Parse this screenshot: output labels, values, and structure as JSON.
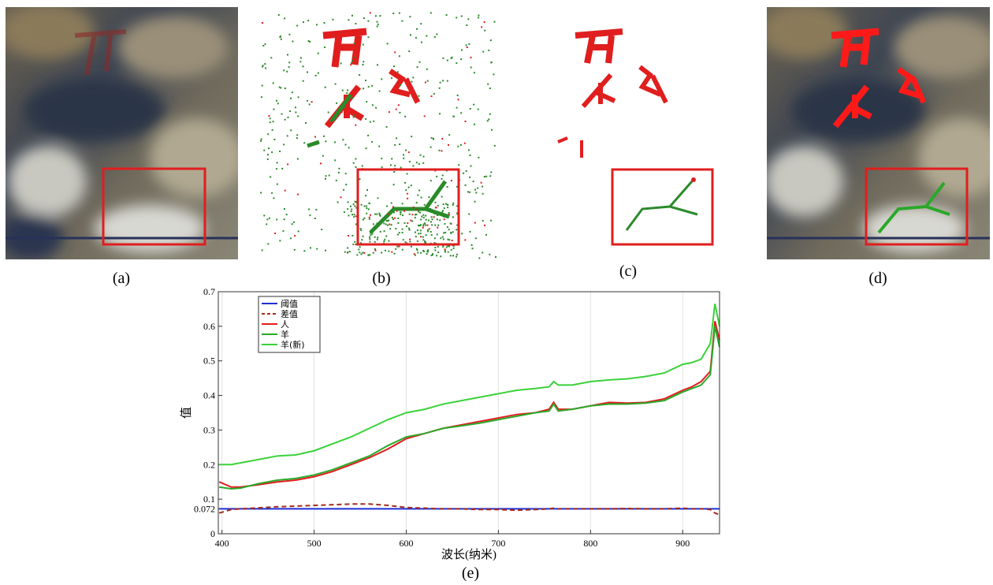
{
  "panels": [
    {
      "caption": "(a)"
    },
    {
      "caption": "(b)"
    },
    {
      "caption": "(c)"
    },
    {
      "caption": "(d)"
    }
  ],
  "chart_data": {
    "type": "line",
    "caption": "(e)",
    "xlabel": "波长(纳米)",
    "ylabel": "值",
    "x": [
      397,
      410,
      420,
      440,
      460,
      480,
      500,
      520,
      540,
      560,
      580,
      600,
      620,
      640,
      660,
      680,
      700,
      720,
      740,
      755,
      760,
      765,
      780,
      800,
      820,
      840,
      860,
      880,
      900,
      910,
      920,
      930,
      935,
      940
    ],
    "series": [
      {
        "name": "阈值",
        "color": "#1f2fd6",
        "linestyle": "solid",
        "values": [
          0.072,
          0.072,
          0.072,
          0.072,
          0.072,
          0.072,
          0.072,
          0.072,
          0.072,
          0.072,
          0.072,
          0.072,
          0.072,
          0.072,
          0.072,
          0.072,
          0.072,
          0.072,
          0.072,
          0.072,
          0.072,
          0.072,
          0.072,
          0.072,
          0.072,
          0.072,
          0.072,
          0.072,
          0.072,
          0.072,
          0.072,
          0.072,
          0.072,
          0.072
        ]
      },
      {
        "name": "差值",
        "color": "#a52a1a",
        "linestyle": "dashed",
        "values": [
          0.06,
          0.07,
          0.072,
          0.075,
          0.078,
          0.08,
          0.082,
          0.084,
          0.086,
          0.086,
          0.082,
          0.076,
          0.074,
          0.072,
          0.072,
          0.07,
          0.07,
          0.068,
          0.07,
          0.072,
          0.074,
          0.072,
          0.072,
          0.072,
          0.072,
          0.073,
          0.072,
          0.072,
          0.074,
          0.072,
          0.072,
          0.07,
          0.06,
          0.055
        ]
      },
      {
        "name": "人",
        "color": "#e01e1e",
        "linestyle": "solid",
        "values": [
          0.15,
          0.135,
          0.135,
          0.142,
          0.15,
          0.155,
          0.165,
          0.18,
          0.2,
          0.22,
          0.245,
          0.275,
          0.29,
          0.305,
          0.315,
          0.325,
          0.335,
          0.345,
          0.35,
          0.36,
          0.38,
          0.36,
          0.36,
          0.37,
          0.38,
          0.378,
          0.38,
          0.39,
          0.415,
          0.425,
          0.44,
          0.47,
          0.615,
          0.56
        ]
      },
      {
        "name": "羊",
        "color": "#2aa82a",
        "linestyle": "solid",
        "values": [
          0.135,
          0.13,
          0.132,
          0.145,
          0.155,
          0.16,
          0.17,
          0.185,
          0.205,
          0.225,
          0.255,
          0.28,
          0.29,
          0.305,
          0.312,
          0.32,
          0.33,
          0.34,
          0.35,
          0.355,
          0.375,
          0.355,
          0.36,
          0.37,
          0.375,
          0.375,
          0.378,
          0.385,
          0.41,
          0.42,
          0.43,
          0.46,
          0.6,
          0.54
        ]
      },
      {
        "name": "羊(新)",
        "color": "#3ad23a",
        "linestyle": "solid",
        "values": [
          0.2,
          0.2,
          0.205,
          0.215,
          0.225,
          0.228,
          0.24,
          0.26,
          0.28,
          0.305,
          0.33,
          0.35,
          0.36,
          0.375,
          0.385,
          0.395,
          0.405,
          0.415,
          0.42,
          0.425,
          0.44,
          0.43,
          0.43,
          0.44,
          0.445,
          0.448,
          0.455,
          0.465,
          0.49,
          0.495,
          0.505,
          0.55,
          0.665,
          0.6
        ]
      }
    ],
    "xlim": [
      396,
      940
    ],
    "ylim": [
      0,
      0.7
    ],
    "xticks": [
      400,
      500,
      600,
      700,
      800,
      900
    ],
    "yticks": [
      0,
      0.072,
      0.1,
      0.2,
      0.3,
      0.4,
      0.5,
      0.6,
      0.7
    ],
    "xgrid": true,
    "legend": "upper-left"
  }
}
